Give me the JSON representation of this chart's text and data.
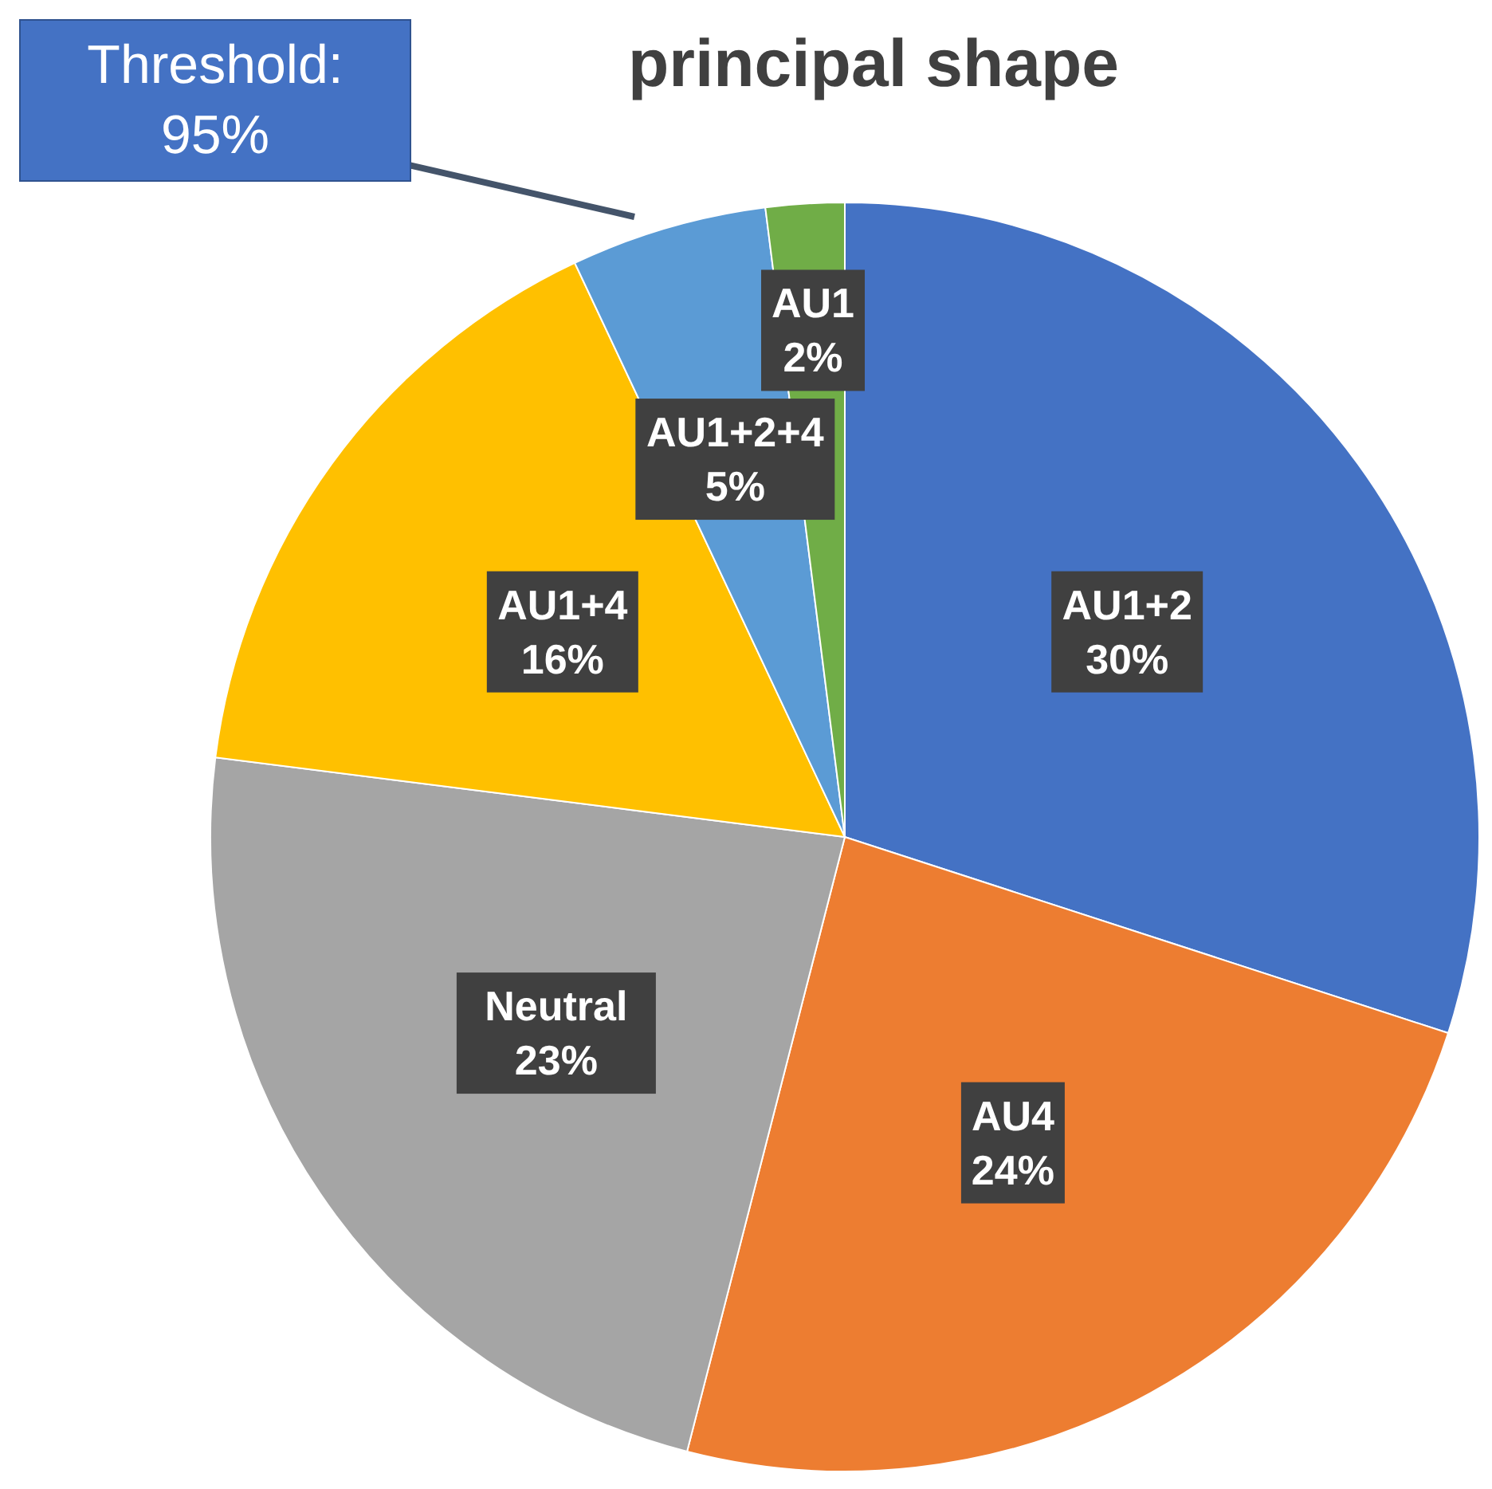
{
  "chart_data": {
    "type": "pie",
    "title": "principal shape",
    "categories": [
      "AU1+2",
      "AU4",
      "Neutral",
      "AU1+4",
      "AU1+2+4",
      "AU1"
    ],
    "values": [
      30,
      24,
      23,
      16,
      5,
      2
    ],
    "colors": [
      "#4472c4",
      "#ed7d31",
      "#a5a5a5",
      "#ffc000",
      "#5b9bd5",
      "#70ad47"
    ],
    "value_labels": [
      "30%",
      "24%",
      "23%",
      "16%",
      "5%",
      "2%"
    ],
    "annotations": [
      "Threshold: 95%"
    ]
  }
}
